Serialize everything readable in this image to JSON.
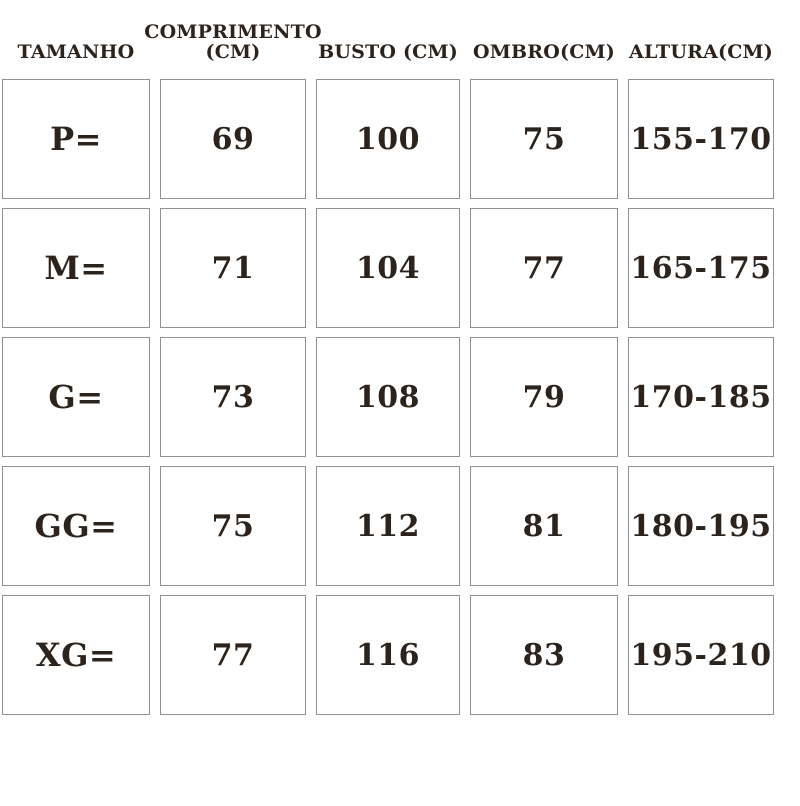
{
  "colors": {
    "background": "#ffffff",
    "text": "#2c231d",
    "cell_border": "#929092"
  },
  "table": {
    "headers": [
      "TAMANHO",
      "COMPRIMENTO (CM)",
      "BUSTO (CM)",
      "OMBRO(CM)",
      "ALTURA(CM)"
    ],
    "rows": [
      [
        "P=",
        "69",
        "100",
        "75",
        "155-170"
      ],
      [
        "M=",
        "71",
        "104",
        "77",
        "165-175"
      ],
      [
        "G=",
        "73",
        "108",
        "79",
        "170-185"
      ],
      [
        "GG=",
        "75",
        "112",
        "81",
        "180-195"
      ],
      [
        "XG=",
        "77",
        "116",
        "83",
        "195-210"
      ]
    ]
  }
}
